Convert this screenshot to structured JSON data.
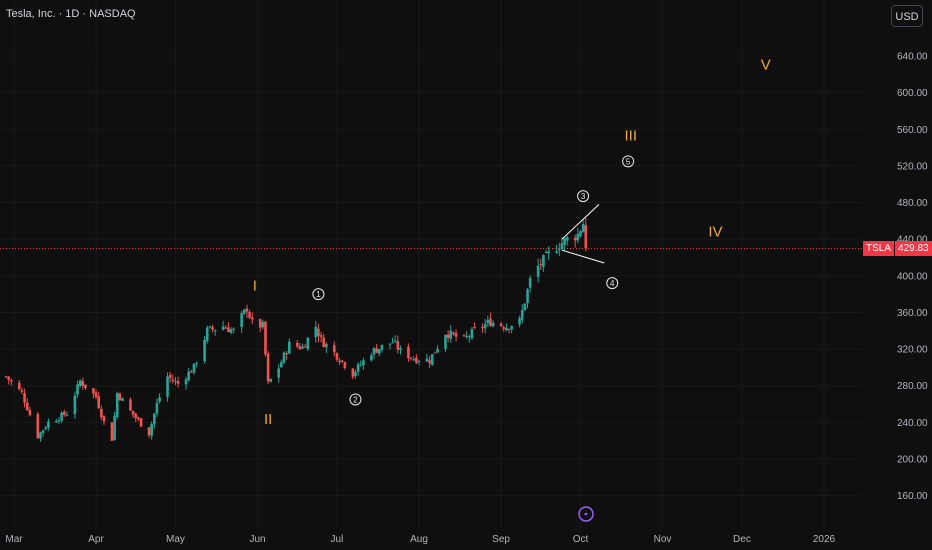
{
  "header": {
    "title": "Tesla, Inc. · 1D · NASDAQ",
    "currency_button": "USD"
  },
  "price_tag": {
    "symbol": "TSLA",
    "value": "429.83",
    "color": "#f23645"
  },
  "colors": {
    "up": "#26a69a",
    "down": "#ef5350",
    "wave": "#f0a830",
    "background": "#0f0f0f"
  },
  "chart_data": {
    "type": "candlestick",
    "ylim": [
      140,
      660
    ],
    "y_ticks": [
      "640.00",
      "600.00",
      "560.00",
      "520.00",
      "480.00",
      "440.00",
      "400.00",
      "360.00",
      "320.00",
      "280.00",
      "240.00",
      "200.00",
      "160.00"
    ],
    "y_tick_values": [
      640,
      600,
      560,
      520,
      480,
      440,
      400,
      360,
      320,
      280,
      240,
      200,
      160
    ],
    "x_ticks": [
      "Mar",
      "Apr",
      "May",
      "Jun",
      "Jul",
      "Aug",
      "Sep",
      "Oct",
      "Nov",
      "Dec",
      "2026"
    ],
    "x_tick_dates": [
      "2025-03-01",
      "2025-04-01",
      "2025-05-01",
      "2025-06-01",
      "2025-07-01",
      "2025-08-01",
      "2025-09-01",
      "2025-10-01",
      "2025-11-01",
      "2025-12-01",
      "2026-01-01"
    ],
    "last_price": 429.83,
    "close_path": [
      [
        "2025-02-26",
        290
      ],
      [
        "2025-03-04",
        272
      ],
      [
        "2025-03-10",
        225
      ],
      [
        "2025-03-14",
        240
      ],
      [
        "2025-03-21",
        250
      ],
      [
        "2025-03-26",
        285
      ],
      [
        "2025-04-01",
        268
      ],
      [
        "2025-04-04",
        240
      ],
      [
        "2025-04-07",
        222
      ],
      [
        "2025-04-09",
        272
      ],
      [
        "2025-04-14",
        252
      ],
      [
        "2025-04-21",
        228
      ],
      [
        "2025-04-24",
        260
      ],
      [
        "2025-04-28",
        290
      ],
      [
        "2025-05-02",
        282
      ],
      [
        "2025-05-08",
        300
      ],
      [
        "2025-05-13",
        340
      ],
      [
        "2025-05-19",
        345
      ],
      [
        "2025-05-23",
        340
      ],
      [
        "2025-05-28",
        365
      ],
      [
        "2025-05-30",
        348
      ],
      [
        "2025-06-03",
        345
      ],
      [
        "2025-06-05",
        282
      ],
      [
        "2025-06-09",
        300
      ],
      [
        "2025-06-13",
        325
      ],
      [
        "2025-06-18",
        322
      ],
      [
        "2025-06-23",
        345
      ],
      [
        "2025-06-25",
        330
      ],
      [
        "2025-07-02",
        310
      ],
      [
        "2025-07-07",
        293
      ],
      [
        "2025-07-14",
        317
      ],
      [
        "2025-07-22",
        328
      ],
      [
        "2025-07-25",
        318
      ],
      [
        "2025-07-30",
        310
      ],
      [
        "2025-08-05",
        308
      ],
      [
        "2025-08-11",
        338
      ],
      [
        "2025-08-18",
        330
      ],
      [
        "2025-08-22",
        340
      ],
      [
        "2025-08-28",
        350
      ],
      [
        "2025-09-03",
        345
      ],
      [
        "2025-09-08",
        350
      ],
      [
        "2025-09-12",
        395
      ],
      [
        "2025-09-15",
        410
      ],
      [
        "2025-09-18",
        420
      ],
      [
        "2025-09-22",
        432
      ],
      [
        "2025-09-26",
        440
      ],
      [
        "2025-09-30",
        445
      ],
      [
        "2025-10-02",
        458
      ],
      [
        "2025-10-03",
        429.83
      ]
    ],
    "annotations": {
      "wave_labels": [
        {
          "label": "I",
          "date": "2025-05-31",
          "price": 384
        },
        {
          "label": "II",
          "date": "2025-06-05",
          "price": 238
        },
        {
          "label": "III",
          "date": "2025-10-20",
          "price": 548
        },
        {
          "label": "IV",
          "date": "2025-11-21",
          "price": 443
        },
        {
          "label": "V",
          "date": "2025-12-10",
          "price": 625
        }
      ],
      "circled_labels": [
        {
          "label": "1",
          "date": "2025-06-24",
          "price": 380
        },
        {
          "label": "2",
          "date": "2025-07-08",
          "price": 265
        },
        {
          "label": "3",
          "date": "2025-10-02",
          "price": 487
        },
        {
          "label": "4",
          "date": "2025-10-13",
          "price": 392
        },
        {
          "label": "5",
          "date": "2025-10-19",
          "price": 525
        }
      ],
      "triangle_lines": [
        [
          [
            "2025-09-24",
            440
          ],
          [
            "2025-10-08",
            478
          ]
        ],
        [
          [
            "2025-09-24",
            428
          ],
          [
            "2025-10-10",
            414
          ]
        ]
      ]
    }
  }
}
